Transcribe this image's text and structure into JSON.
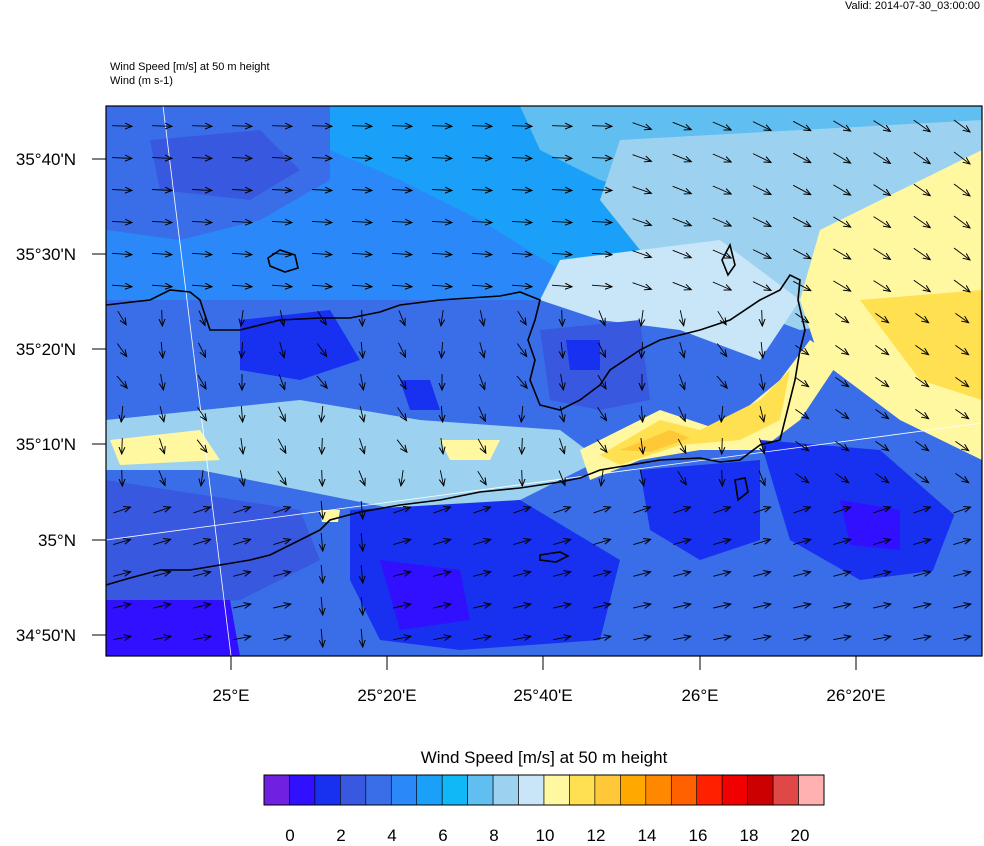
{
  "header": {
    "valid": "Valid: 2014-07-30_03:00:00",
    "title_line1": "Wind Speed [m/s] at 50 m height",
    "title_line2": "Wind   (m s-1)"
  },
  "map": {
    "lat_labels": [
      "35°40'N",
      "35°30'N",
      "35°20'N",
      "35°10'N",
      "35°N",
      "34°50'N"
    ],
    "lon_labels": [
      "25°E",
      "25°20'E",
      "25°40'E",
      "26°E",
      "26°20'E"
    ],
    "land_color": "#000000",
    "arrow_color": "#000000"
  },
  "colorbar": {
    "title": "Wind Speed [m/s] at 50 m height",
    "labels": [
      "0",
      "2",
      "4",
      "6",
      "8",
      "10",
      "12",
      "14",
      "16",
      "18",
      "20"
    ],
    "colors": [
      "#7020e0",
      "#3010ff",
      "#1830f0",
      "#3858e0",
      "#3a6ee8",
      "#2a88f8",
      "#1aa0f8",
      "#10b8f8",
      "#60bef0",
      "#9cd2f0",
      "#c8e6f8",
      "#fff8a0",
      "#ffe050",
      "#ffc838",
      "#ffa800",
      "#ff8800",
      "#ff6000",
      "#ff2000",
      "#f00000",
      "#cc0000",
      "#e04848",
      "#ffb0b0"
    ]
  }
}
